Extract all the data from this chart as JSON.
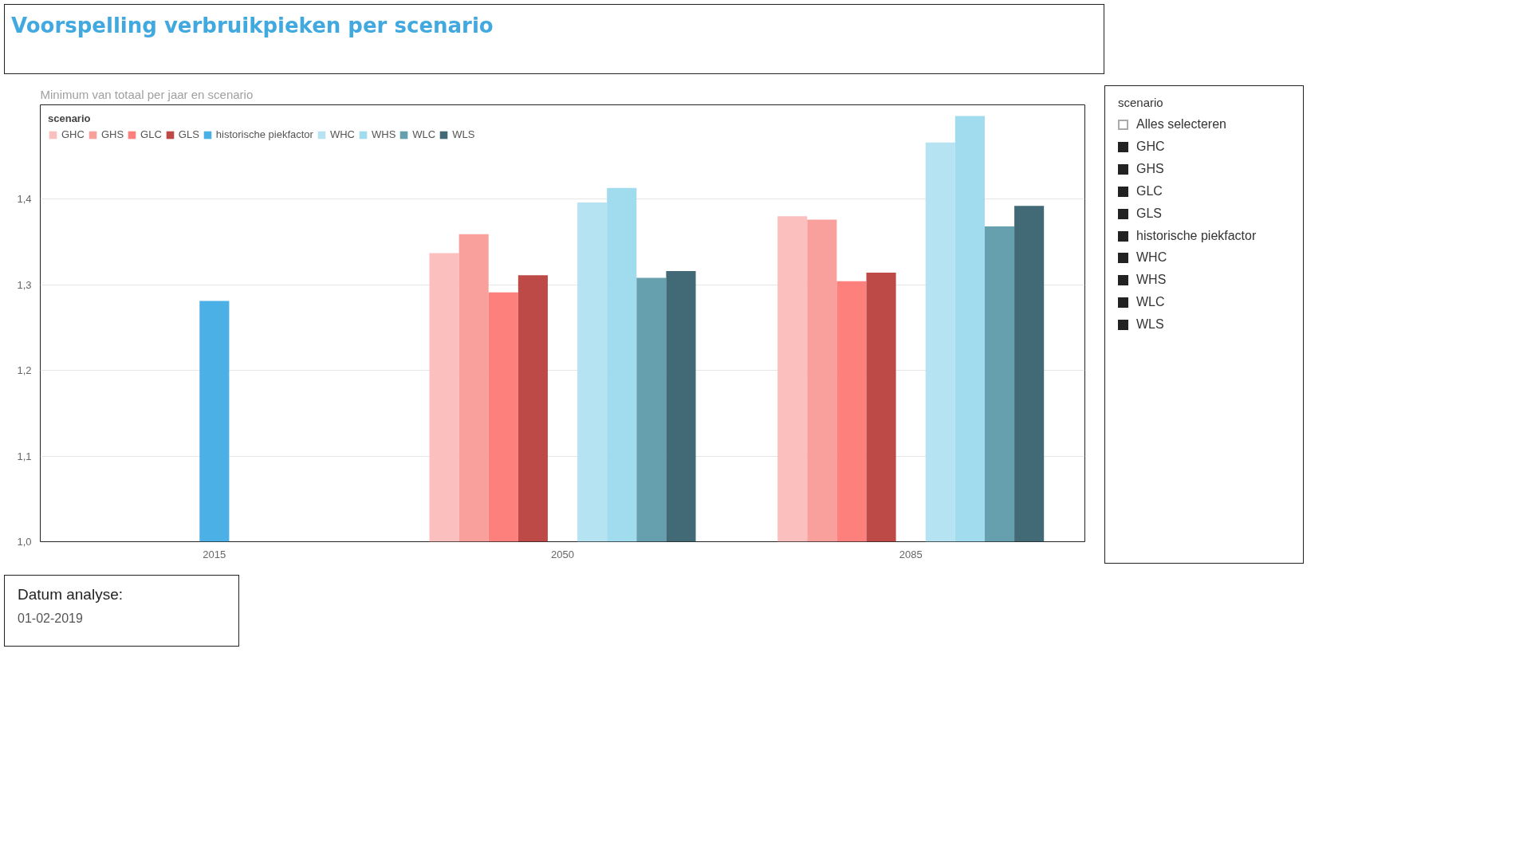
{
  "chart_data": [
    {
      "type": "bar",
      "title": "Voorspelling verbruikpieken per scenario",
      "subtitle": "Minimum van totaal per jaar en scenario",
      "legend_title": "scenario",
      "legend": "top left",
      "grid": "y",
      "categories": [
        "2015",
        "2050",
        "2085"
      ],
      "ylim": [
        1.0,
        1.51
      ],
      "yticks": [
        {
          "value": 1.0,
          "label": "1,0"
        },
        {
          "value": 1.1,
          "label": "1,1"
        },
        {
          "value": 1.2,
          "label": "1,2"
        },
        {
          "value": 1.3,
          "label": "1,3"
        },
        {
          "value": 1.4,
          "label": "1,4"
        }
      ],
      "series": [
        {
          "name": "GHC",
          "color": "#fbbfbe",
          "values": [
            null,
            1.337,
            1.38
          ]
        },
        {
          "name": "GHS",
          "color": "#f9a09d",
          "values": [
            null,
            1.359,
            1.376
          ]
        },
        {
          "name": "GLC",
          "color": "#fd807c",
          "values": [
            null,
            1.291,
            1.304
          ]
        },
        {
          "name": "GLS",
          "color": "#be4a47",
          "values": [
            null,
            1.311,
            1.314
          ]
        },
        {
          "name": "historische piekfactor",
          "color": "#4ab0e5",
          "values": [
            1.281,
            null,
            null
          ]
        },
        {
          "name": "WHC",
          "color": "#b6e3f1",
          "values": [
            null,
            1.396,
            1.466
          ]
        },
        {
          "name": "WHS",
          "color": "#a1dcee",
          "values": [
            null,
            1.413,
            1.497
          ]
        },
        {
          "name": "WLC",
          "color": "#669fae",
          "values": [
            null,
            1.308,
            1.368
          ]
        },
        {
          "name": "WLS",
          "color": "#426a76",
          "values": [
            null,
            1.316,
            1.392
          ]
        }
      ]
    },
    {
      "type": "other",
      "title": "scenario",
      "annotations": [
        "Alles selecteren",
        "GHC",
        "GHS",
        "GLC",
        "GLS",
        "historische piekfactor",
        "WHC",
        "WHS",
        "WLC",
        "WLS"
      ]
    },
    {
      "type": "other",
      "title": "Datum analyse:",
      "annotations": [
        "01-02-2019"
      ]
    }
  ]
}
